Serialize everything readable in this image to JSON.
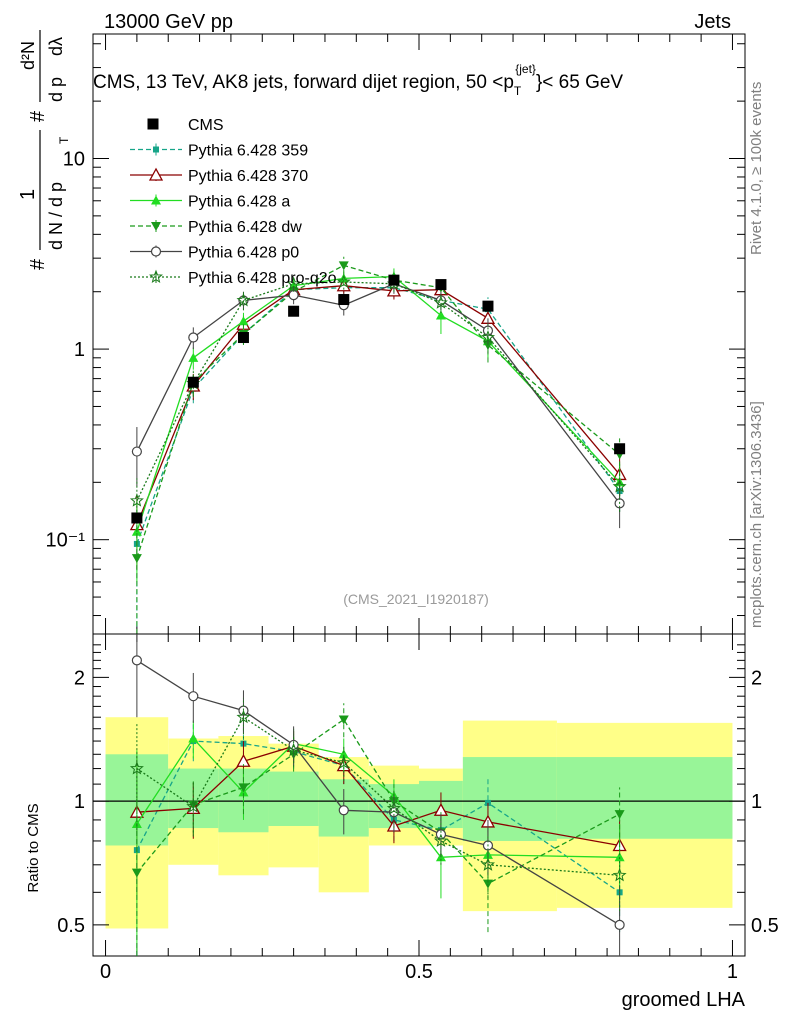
{
  "header": {
    "left": "13000 GeV pp",
    "right": "Jets",
    "rivet": "Rivet 4.1.0, ≥ 100k events",
    "mcplots": "mcplots.cern.ch [arXiv:1306.3436]",
    "analysis": "(CMS_2021_I1920187)"
  },
  "chart_data": [
    {
      "panel": "main",
      "type": "scatter",
      "title": "CMS, 13 TeV, AK8 jets, forward dijet region, 50 <p_T^{jet}< 65 GeV",
      "title_parts": {
        "main": "CMS, 13 TeV, AK8 jets, forward dijet region, 50 <p",
        "sub": "T",
        "sup": "{jet}",
        "end": "}< 65 GeV"
      },
      "ylabel": "1/N dN/dp_T dλ",
      "ylabel_parts": {
        "hash": "#",
        "one": "1",
        "dN": "d N / d p",
        "T": "T",
        "num": "d²N",
        "den": "d p",
        "dl": "dλ"
      },
      "yscale": "log",
      "xlim": [
        -0.02,
        1.02
      ],
      "ylim": [
        0.032,
        45
      ],
      "yticks": [
        {
          "value": 10,
          "label": "10"
        },
        {
          "value": 1,
          "label": "1"
        },
        {
          "value": 0.1,
          "label": "10⁻¹"
        }
      ],
      "x": [
        0.05,
        0.14,
        0.22,
        0.3,
        0.38,
        0.46,
        0.535,
        0.61,
        0.82
      ],
      "data": {
        "name": "CMS",
        "values": [
          0.13,
          0.67,
          1.15,
          1.58,
          1.82,
          2.3,
          2.18,
          1.68,
          0.3
        ]
      },
      "series": [
        {
          "name": "Pythia 6.428 359",
          "color": "#17a589",
          "dash": "5,3",
          "marker": "square",
          "values": [
            0.095,
            0.62,
            1.2,
            2.05,
            2.1,
            2.1,
            1.8,
            1.62,
            0.18
          ],
          "errors": [
            0.06,
            0.1,
            0.14,
            0.2,
            0.2,
            0.25,
            0.2,
            0.25,
            0.04
          ]
        },
        {
          "name": "Pythia 6.428 370",
          "color": "#8b0000",
          "dash": "",
          "marker": "triangle-open",
          "values": [
            0.12,
            0.64,
            1.35,
            2.05,
            2.15,
            2.02,
            2.05,
            1.45,
            0.22
          ],
          "errors": [
            0.05,
            0.1,
            0.15,
            0.2,
            0.2,
            0.2,
            0.2,
            0.2,
            0.05
          ]
        },
        {
          "name": "Pythia 6.428 a",
          "color": "#22dd22",
          "dash": "",
          "marker": "triangle",
          "values": [
            0.11,
            0.9,
            1.4,
            2.15,
            2.35,
            2.4,
            1.5,
            1.1,
            0.2
          ],
          "errors": [
            0.05,
            0.12,
            0.15,
            0.2,
            0.2,
            0.25,
            0.3,
            0.2,
            0.05
          ]
        },
        {
          "name": "Pythia 6.428 dw",
          "color": "#1a9a1a",
          "dash": "5,3",
          "marker": "triangle-down",
          "values": [
            0.08,
            0.67,
            1.2,
            2.0,
            2.75,
            2.3,
            2.1,
            1.05,
            0.28
          ],
          "errors": [
            0.05,
            0.1,
            0.15,
            0.2,
            0.3,
            0.25,
            0.2,
            0.2,
            0.06
          ]
        },
        {
          "name": "Pythia 6.428 p0",
          "color": "#444444",
          "dash": "",
          "marker": "circle-open",
          "values": [
            0.29,
            1.15,
            1.8,
            1.92,
            1.7,
            2.2,
            1.8,
            1.25,
            0.155
          ],
          "errors": [
            0.1,
            0.15,
            0.2,
            0.2,
            0.2,
            0.25,
            0.2,
            0.2,
            0.04
          ]
        },
        {
          "name": "Pythia 6.428 pro-q2o",
          "color": "#1a7a1a",
          "dash": "2,2",
          "marker": "star",
          "values": [
            0.16,
            0.66,
            1.8,
            2.2,
            2.25,
            2.2,
            1.75,
            1.15,
            0.19
          ],
          "errors": [
            0.05,
            0.1,
            0.2,
            0.2,
            0.2,
            0.2,
            0.2,
            0.2,
            0.05
          ]
        }
      ]
    },
    {
      "panel": "ratio",
      "type": "line",
      "xlabel": "groomed LHA",
      "ylabel": "Ratio to CMS",
      "yscale": "log",
      "xlim": [
        -0.02,
        1.02
      ],
      "ylim": [
        0.42,
        2.55
      ],
      "xticks": [
        {
          "value": 0,
          "label": "0"
        },
        {
          "value": 0.5,
          "label": "0.5"
        },
        {
          "value": 1,
          "label": "1"
        }
      ],
      "yticks": [
        {
          "value": 2,
          "label": "2"
        },
        {
          "value": 1,
          "label": "1"
        },
        {
          "value": 0.5,
          "label": "0.5"
        }
      ],
      "reference_line": 1,
      "bins": [
        {
          "lo": 0.0,
          "hi": 0.1,
          "band_outer": [
            0.49,
            1.6
          ],
          "band_inner": [
            0.78,
            1.3
          ]
        },
        {
          "lo": 0.1,
          "hi": 0.18,
          "band_outer": [
            0.7,
            1.42
          ],
          "band_inner": [
            0.86,
            1.2
          ]
        },
        {
          "lo": 0.18,
          "hi": 0.26,
          "band_outer": [
            0.66,
            1.44
          ],
          "band_inner": [
            0.84,
            1.2
          ]
        },
        {
          "lo": 0.26,
          "hi": 0.34,
          "band_outer": [
            0.69,
            1.38
          ],
          "band_inner": [
            0.87,
            1.18
          ]
        },
        {
          "lo": 0.34,
          "hi": 0.42,
          "band_outer": [
            0.6,
            1.28
          ],
          "band_inner": [
            0.82,
            1.13
          ]
        },
        {
          "lo": 0.42,
          "hi": 0.5,
          "band_outer": [
            0.78,
            1.22
          ],
          "band_inner": [
            0.86,
            1.1
          ]
        },
        {
          "lo": 0.5,
          "hi": 0.57,
          "band_outer": [
            0.78,
            1.2
          ],
          "band_inner": [
            0.86,
            1.12
          ]
        },
        {
          "lo": 0.57,
          "hi": 0.72,
          "band_outer": [
            0.54,
            1.57
          ],
          "band_inner": [
            0.8,
            1.28
          ]
        },
        {
          "lo": 0.72,
          "hi": 1.0,
          "band_outer": [
            0.55,
            1.55
          ],
          "band_inner": [
            0.81,
            1.28
          ]
        }
      ],
      "series": [
        {
          "name": "Pythia 6.428 359",
          "values": [
            0.76,
            1.4,
            1.38,
            1.32,
            1.22,
            0.9,
            0.85,
            0.99,
            0.6
          ],
          "errors": [
            0.4,
            0.15,
            0.15,
            0.12,
            0.12,
            0.1,
            0.1,
            0.15,
            0.12
          ]
        },
        {
          "name": "Pythia 6.428 370",
          "values": [
            0.94,
            0.96,
            1.25,
            1.36,
            1.22,
            0.87,
            0.95,
            0.89,
            0.78
          ],
          "errors": [
            0.35,
            0.15,
            0.15,
            0.12,
            0.12,
            0.08,
            0.1,
            0.1,
            0.12
          ]
        },
        {
          "name": "Pythia 6.428 a",
          "values": [
            0.88,
            1.42,
            1.05,
            1.38,
            1.3,
            1.03,
            0.73,
            0.74,
            0.73
          ],
          "errors": [
            0.45,
            0.15,
            0.15,
            0.12,
            0.12,
            0.1,
            0.15,
            0.12,
            0.15
          ]
        },
        {
          "name": "Pythia 6.428 dw",
          "values": [
            0.67,
            0.98,
            1.08,
            1.3,
            1.58,
            1.0,
            0.84,
            0.63,
            0.93
          ],
          "errors": [
            0.35,
            0.15,
            0.15,
            0.12,
            0.15,
            0.1,
            0.1,
            0.15,
            0.15
          ]
        },
        {
          "name": "Pythia 6.428 p0",
          "values": [
            2.2,
            1.8,
            1.66,
            1.37,
            0.95,
            0.94,
            0.83,
            0.78,
            0.5
          ],
          "errors": [
            0.6,
            0.25,
            0.2,
            0.15,
            0.12,
            0.1,
            0.1,
            0.12,
            0.12
          ]
        },
        {
          "name": "Pythia 6.428 pro-q2o",
          "values": [
            1.2,
            0.97,
            1.6,
            1.33,
            1.24,
            0.96,
            0.8,
            0.7,
            0.66
          ],
          "errors": [
            0.35,
            0.15,
            0.18,
            0.12,
            0.12,
            0.1,
            0.1,
            0.12,
            0.12
          ]
        }
      ]
    }
  ]
}
